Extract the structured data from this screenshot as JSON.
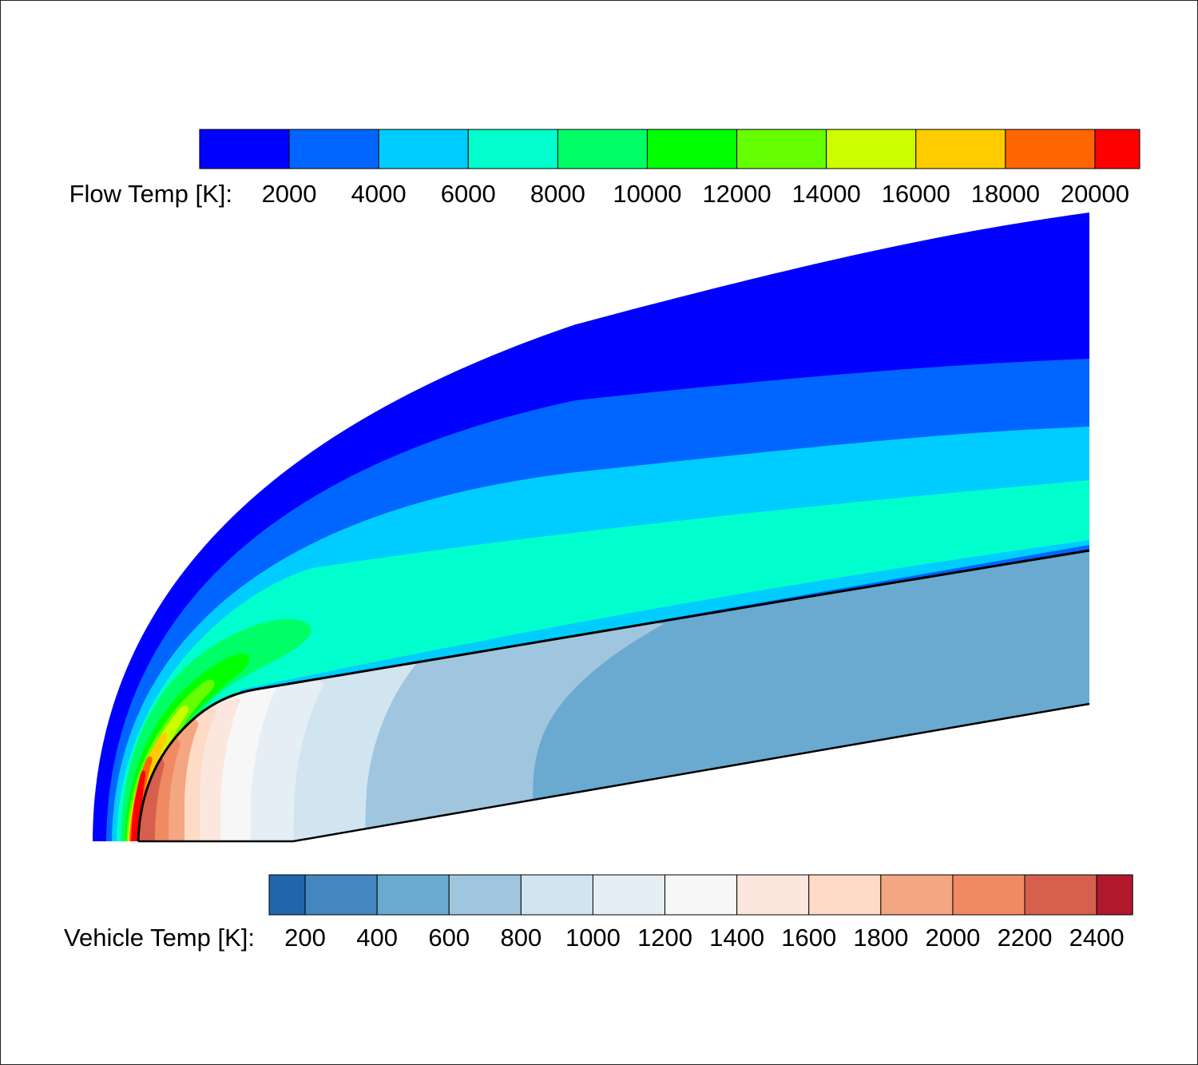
{
  "flow_legend": {
    "title": "Flow Temp [K]:",
    "ticks": [
      "2000",
      "4000",
      "6000",
      "8000",
      "10000",
      "12000",
      "14000",
      "16000",
      "18000",
      "20000"
    ],
    "bands": [
      {
        "from": 0,
        "to": 2000,
        "color": "#0000ff"
      },
      {
        "from": 2000,
        "to": 4000,
        "color": "#0066ff"
      },
      {
        "from": 4000,
        "to": 6000,
        "color": "#00ccff"
      },
      {
        "from": 6000,
        "to": 8000,
        "color": "#00ffcc"
      },
      {
        "from": 8000,
        "to": 10000,
        "color": "#00ff66"
      },
      {
        "from": 10000,
        "to": 12000,
        "color": "#00ff00"
      },
      {
        "from": 12000,
        "to": 14000,
        "color": "#66ff00"
      },
      {
        "from": 14000,
        "to": 16000,
        "color": "#ccff00"
      },
      {
        "from": 16000,
        "to": 18000,
        "color": "#ffcc00"
      },
      {
        "from": 18000,
        "to": 20000,
        "color": "#ff6600"
      },
      {
        "from": 20000,
        "to": 21000,
        "color": "#ff0000"
      }
    ]
  },
  "vehicle_legend": {
    "title": "Vehicle Temp [K]:",
    "ticks": [
      "200",
      "400",
      "600",
      "800",
      "1000",
      "1200",
      "1400",
      "1600",
      "1800",
      "2000",
      "2200",
      "2400"
    ],
    "bands": [
      {
        "from": 100,
        "to": 200,
        "color": "#2166ac"
      },
      {
        "from": 200,
        "to": 400,
        "color": "#4287bf"
      },
      {
        "from": 400,
        "to": 600,
        "color": "#6aa9d0"
      },
      {
        "from": 600,
        "to": 800,
        "color": "#9fc6de"
      },
      {
        "from": 800,
        "to": 1000,
        "color": "#d1e5f0"
      },
      {
        "from": 1000,
        "to": 1200,
        "color": "#e6eef5"
      },
      {
        "from": 1200,
        "to": 1400,
        "color": "#f7f7f7"
      },
      {
        "from": 1400,
        "to": 1600,
        "color": "#fbe7de"
      },
      {
        "from": 1600,
        "to": 1800,
        "color": "#fddbc7"
      },
      {
        "from": 1800,
        "to": 2000,
        "color": "#f4a582"
      },
      {
        "from": 2000,
        "to": 2200,
        "color": "#ef8a62"
      },
      {
        "from": 2200,
        "to": 2400,
        "color": "#d6604d"
      },
      {
        "from": 2400,
        "to": 2500,
        "color": "#b2182b"
      }
    ]
  }
}
